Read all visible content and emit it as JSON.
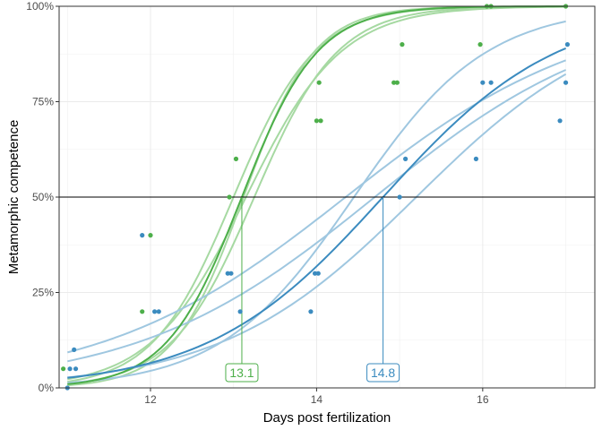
{
  "chart_data": {
    "type": "scatter",
    "xlabel": "Days post fertilization",
    "ylabel": "Metamorphic competence",
    "xlim": [
      10.9,
      17.35
    ],
    "ylim": [
      0,
      1
    ],
    "x_ticks": [
      12,
      14,
      16
    ],
    "x_tick_labels": [
      "12",
      "14",
      "16"
    ],
    "y_ticks": [
      0,
      0.25,
      0.5,
      0.75,
      1
    ],
    "y_tick_labels": [
      "0%",
      "25%",
      "50%",
      "75%",
      "100%"
    ],
    "grid": true,
    "legend": "none",
    "reference_line_y": 0.5,
    "series": [
      {
        "color": "#4daf4a",
        "band_color": "#a6d9a2",
        "fit_x0": 13.1,
        "fit_k": 2.2,
        "bands": [
          {
            "x0": 13.0,
            "k": 2.05
          },
          {
            "x0": 13.15,
            "k": 1.75
          },
          {
            "x0": 13.12,
            "k": 2.35
          },
          {
            "x0": 13.25,
            "k": 2.0
          }
        ],
        "points": [
          [
            10.95,
            0.05
          ],
          [
            11.9,
            0.2
          ],
          [
            12.0,
            0.4
          ],
          [
            12.95,
            0.5
          ],
          [
            13.03,
            0.6
          ],
          [
            14.0,
            0.7
          ],
          [
            14.03,
            0.8
          ],
          [
            14.05,
            0.7
          ],
          [
            14.93,
            0.8
          ],
          [
            14.97,
            0.8
          ],
          [
            15.03,
            0.9
          ],
          [
            15.97,
            0.9
          ],
          [
            16.05,
            1.0
          ],
          [
            16.1,
            1.0
          ],
          [
            17.0,
            1.0
          ]
        ],
        "annotation": "13.1"
      },
      {
        "color": "#3b8bbf",
        "band_color": "#9fc7e0",
        "fit_x0": 14.8,
        "fit_k": 0.95,
        "bands": [
          {
            "x0": 14.45,
            "k": 1.25
          },
          {
            "x0": 14.35,
            "k": 0.68
          },
          {
            "x0": 15.2,
            "k": 0.85
          },
          {
            "x0": 14.7,
            "k": 0.7
          }
        ],
        "points": [
          [
            11.0,
            0.0
          ],
          [
            11.03,
            0.05
          ],
          [
            11.08,
            0.1
          ],
          [
            11.1,
            0.05
          ],
          [
            11.9,
            0.4
          ],
          [
            12.05,
            0.2
          ],
          [
            12.1,
            0.2
          ],
          [
            12.93,
            0.3
          ],
          [
            12.97,
            0.3
          ],
          [
            13.08,
            0.2
          ],
          [
            13.93,
            0.2
          ],
          [
            13.98,
            0.3
          ],
          [
            14.02,
            0.3
          ],
          [
            15.0,
            0.5
          ],
          [
            15.07,
            0.6
          ],
          [
            15.92,
            0.6
          ],
          [
            16.0,
            0.8
          ],
          [
            16.1,
            0.8
          ],
          [
            16.93,
            0.7
          ],
          [
            17.0,
            0.8
          ],
          [
            17.02,
            0.9
          ]
        ],
        "annotation": "14.8"
      }
    ]
  }
}
